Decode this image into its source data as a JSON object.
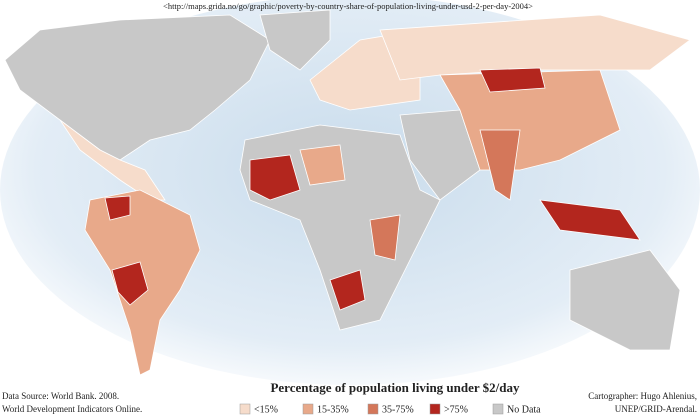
{
  "header": {
    "url": "<http://maps.grida.no/go/graphic/poverty-by-country-share-of-population-living-under-usd-2-per-day-2004>"
  },
  "legend": {
    "title": "Percentage of population living under $2/day",
    "items": [
      {
        "label": "<15%",
        "color": "#f6dccb"
      },
      {
        "label": "15-35%",
        "color": "#e8a98a"
      },
      {
        "label": "35-75%",
        "color": "#d4775a"
      },
      {
        "label": ">75%",
        "color": "#b3261e"
      },
      {
        "label": "No Data",
        "color": "#c8c8c8"
      }
    ]
  },
  "source": {
    "lines": [
      "Data Source: World Bank. 2008.",
      "World Development Indicators Online."
    ]
  },
  "credit": {
    "lines": [
      "Cartographer: Hugo Ahlenius,",
      "UNEP/GRID-Arendal."
    ]
  }
}
